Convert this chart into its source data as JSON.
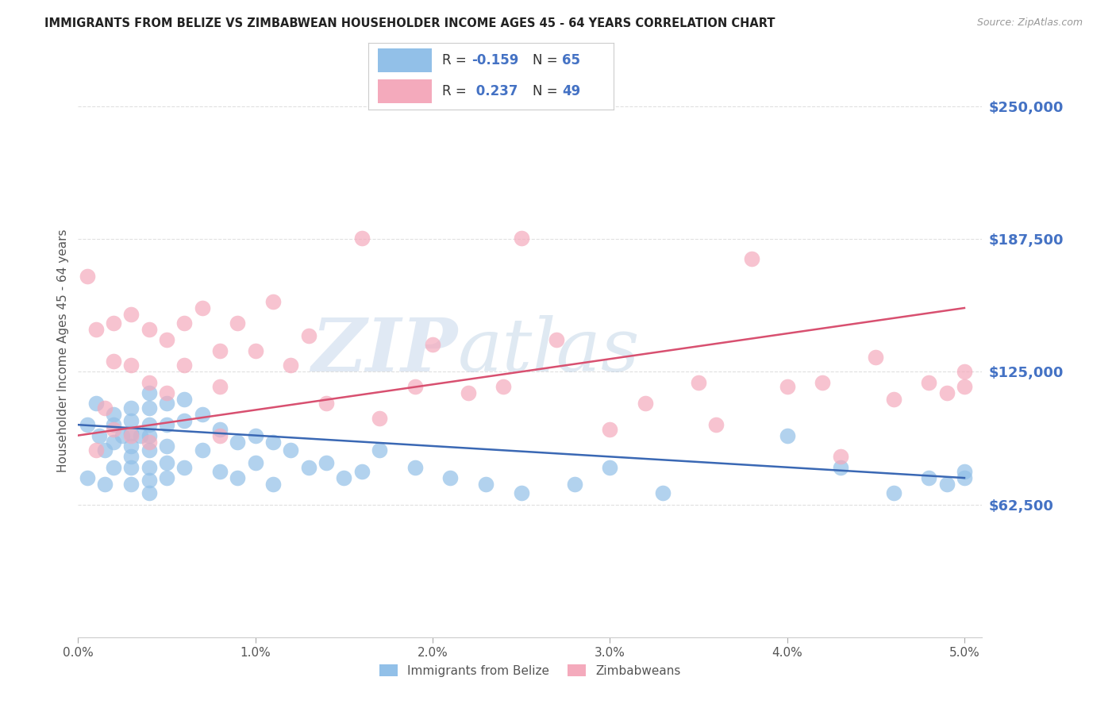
{
  "title": "IMMIGRANTS FROM BELIZE VS ZIMBABWEAN HOUSEHOLDER INCOME AGES 45 - 64 YEARS CORRELATION CHART",
  "source": "Source: ZipAtlas.com",
  "ylabel": "Householder Income Ages 45 - 64 years",
  "ytick_labels": [
    "$62,500",
    "$125,000",
    "$187,500",
    "$250,000"
  ],
  "ytick_values": [
    62500,
    125000,
    187500,
    250000
  ],
  "ymin": 0,
  "ymax": 270000,
  "xmin": 0.0,
  "xmax": 0.051,
  "legend_r_belize": "-0.159",
  "legend_n_belize": "65",
  "legend_r_zimbabwe": "0.237",
  "legend_n_zimbabwe": "49",
  "belize_color": "#92C0E8",
  "zimbabwe_color": "#F4AABC",
  "belize_line_color": "#3A68B4",
  "zimbabwe_line_color": "#D85070",
  "belize_scatter_x": [
    0.0005,
    0.001,
    0.0012,
    0.0015,
    0.0015,
    0.002,
    0.002,
    0.002,
    0.002,
    0.0025,
    0.003,
    0.003,
    0.003,
    0.003,
    0.003,
    0.003,
    0.003,
    0.0035,
    0.004,
    0.004,
    0.004,
    0.004,
    0.004,
    0.004,
    0.004,
    0.004,
    0.005,
    0.005,
    0.005,
    0.005,
    0.005,
    0.006,
    0.006,
    0.006,
    0.007,
    0.007,
    0.008,
    0.008,
    0.009,
    0.009,
    0.01,
    0.01,
    0.011,
    0.011,
    0.012,
    0.013,
    0.014,
    0.015,
    0.016,
    0.017,
    0.019,
    0.021,
    0.023,
    0.025,
    0.028,
    0.03,
    0.033,
    0.04,
    0.043,
    0.046,
    0.048,
    0.049,
    0.05,
    0.05,
    0.0005
  ],
  "belize_scatter_y": [
    100000,
    110000,
    95000,
    88000,
    72000,
    105000,
    100000,
    92000,
    80000,
    95000,
    108000,
    102000,
    96000,
    90000,
    85000,
    80000,
    72000,
    95000,
    115000,
    108000,
    100000,
    95000,
    88000,
    80000,
    74000,
    68000,
    110000,
    100000,
    90000,
    82000,
    75000,
    112000,
    102000,
    80000,
    105000,
    88000,
    98000,
    78000,
    92000,
    75000,
    95000,
    82000,
    92000,
    72000,
    88000,
    80000,
    82000,
    75000,
    78000,
    88000,
    80000,
    75000,
    72000,
    68000,
    72000,
    80000,
    68000,
    95000,
    80000,
    68000,
    75000,
    72000,
    78000,
    75000,
    75000
  ],
  "zimbabwe_scatter_x": [
    0.0005,
    0.001,
    0.001,
    0.0015,
    0.002,
    0.002,
    0.002,
    0.003,
    0.003,
    0.003,
    0.004,
    0.004,
    0.004,
    0.005,
    0.005,
    0.006,
    0.006,
    0.007,
    0.008,
    0.008,
    0.008,
    0.009,
    0.01,
    0.011,
    0.012,
    0.013,
    0.014,
    0.016,
    0.017,
    0.019,
    0.02,
    0.022,
    0.024,
    0.025,
    0.027,
    0.03,
    0.032,
    0.035,
    0.036,
    0.038,
    0.04,
    0.042,
    0.043,
    0.045,
    0.046,
    0.048,
    0.049,
    0.05,
    0.05
  ],
  "zimbabwe_scatter_y": [
    170000,
    145000,
    88000,
    108000,
    148000,
    130000,
    98000,
    152000,
    128000,
    95000,
    145000,
    120000,
    92000,
    140000,
    115000,
    148000,
    128000,
    155000,
    135000,
    118000,
    95000,
    148000,
    135000,
    158000,
    128000,
    142000,
    110000,
    188000,
    103000,
    118000,
    138000,
    115000,
    118000,
    188000,
    140000,
    98000,
    110000,
    120000,
    100000,
    178000,
    118000,
    120000,
    85000,
    132000,
    112000,
    120000,
    115000,
    125000,
    118000
  ],
  "watermark_zip": "ZIP",
  "watermark_atlas": "atlas",
  "background_color": "#FFFFFF",
  "grid_color": "#DDDDDD",
  "xtick_values": [
    0.0,
    0.01,
    0.02,
    0.03,
    0.04,
    0.05
  ],
  "xtick_labels": [
    "0.0%",
    "1.0%",
    "2.0%",
    "3.0%",
    "4.0%",
    "5.0%"
  ]
}
